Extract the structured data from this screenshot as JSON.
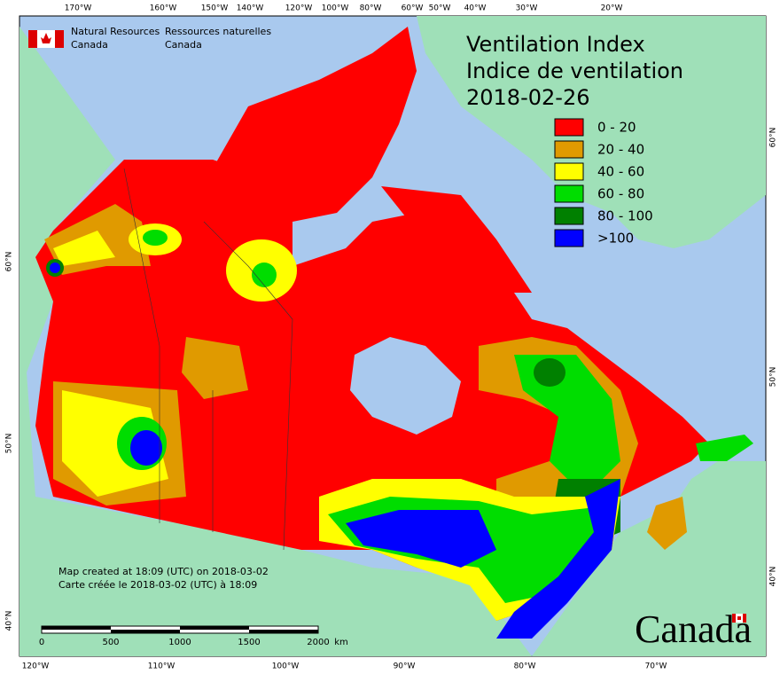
{
  "header": {
    "agency_en": [
      "Natural Resources",
      "Canada"
    ],
    "agency_fr": [
      "Ressources naturelles",
      "Canada"
    ]
  },
  "title": [
    "Ventilation Index",
    "Indice de ventilation",
    "2018-02-26"
  ],
  "legend": [
    {
      "label": "0 - 20",
      "color": "#ff0000"
    },
    {
      "label": "20 - 40",
      "color": "#e09a00"
    },
    {
      "label": "40 - 60",
      "color": "#ffff00"
    },
    {
      "label": "60 - 80",
      "color": "#00dd00"
    },
    {
      "label": "80 - 100",
      "color": "#008000"
    },
    {
      "label": ">100",
      "color": "#0000ff"
    }
  ],
  "graticule": {
    "top": [
      "170°W",
      "160°W",
      "150°W",
      "140°W",
      "120°W",
      "100°W",
      "80°W",
      "60°W",
      "50°W",
      "40°W",
      "30°W",
      "20°W"
    ],
    "bottom": [
      "120°W",
      "110°W",
      "100°W",
      "90°W",
      "80°W",
      "70°W"
    ],
    "left": [
      "60°N",
      "50°N",
      "40°N"
    ],
    "right": [
      "60°N",
      "50°N",
      "40°N"
    ]
  },
  "scale_bar": [
    "0",
    "500",
    "1000",
    "1500",
    "2000",
    "km"
  ],
  "footer": [
    "Map created at 18:09 (UTC) on 2018-03-02",
    "Carte créée le 2018-03-02 (UTC) à 18:09"
  ],
  "wordmark": "Canada"
}
